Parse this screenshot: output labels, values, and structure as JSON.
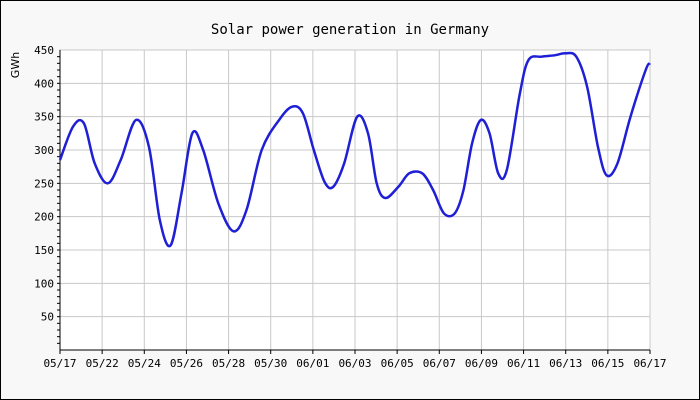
{
  "chart_data": {
    "type": "line",
    "title": "Solar power generation in Germany",
    "ylabel": "GWh",
    "xlabel": "",
    "ylim": [
      0,
      450
    ],
    "yticks": [
      50,
      100,
      150,
      200,
      250,
      300,
      350,
      400,
      450
    ],
    "xticks": [
      "05/17",
      "05/22",
      "05/24",
      "05/26",
      "05/28",
      "05/30",
      "06/01",
      "06/03",
      "06/05",
      "06/07",
      "06/09",
      "06/11",
      "06/13",
      "06/15",
      "06/17"
    ],
    "grid": true,
    "colors": {
      "line": "#1f1fd6",
      "grid": "#c8c8c8",
      "plot_bg": "#ffffff"
    },
    "series": [
      {
        "name": "",
        "values": [
          [
            0,
            285
          ],
          [
            0.6,
            335
          ],
          [
            1.1,
            340
          ],
          [
            1.6,
            280
          ],
          [
            2.2,
            250
          ],
          [
            2.8,
            285
          ],
          [
            3.5,
            345
          ],
          [
            4.1,
            305
          ],
          [
            4.6,
            195
          ],
          [
            5.1,
            157
          ],
          [
            5.6,
            235
          ],
          [
            6.1,
            325
          ],
          [
            6.6,
            300
          ],
          [
            7.3,
            220
          ],
          [
            8.0,
            178
          ],
          [
            8.6,
            210
          ],
          [
            9.3,
            300
          ],
          [
            10.1,
            345
          ],
          [
            10.7,
            365
          ],
          [
            11.2,
            355
          ],
          [
            11.7,
            300
          ],
          [
            12.2,
            252
          ],
          [
            12.6,
            245
          ],
          [
            13.1,
            280
          ],
          [
            13.7,
            350
          ],
          [
            14.2,
            325
          ],
          [
            14.6,
            250
          ],
          [
            15.0,
            228
          ],
          [
            15.6,
            245
          ],
          [
            16.1,
            265
          ],
          [
            16.7,
            265
          ],
          [
            17.2,
            240
          ],
          [
            17.7,
            205
          ],
          [
            18.2,
            205
          ],
          [
            18.6,
            240
          ],
          [
            19.0,
            310
          ],
          [
            19.4,
            345
          ],
          [
            19.8,
            325
          ],
          [
            20.2,
            265
          ],
          [
            20.6,
            270
          ],
          [
            21.2,
            385
          ],
          [
            21.6,
            435
          ],
          [
            22.2,
            440
          ],
          [
            22.8,
            442
          ],
          [
            23.3,
            445
          ],
          [
            23.8,
            440
          ],
          [
            24.3,
            395
          ],
          [
            24.8,
            305
          ],
          [
            25.2,
            262
          ],
          [
            25.7,
            280
          ],
          [
            26.3,
            350
          ],
          [
            27.0,
            420
          ],
          [
            27.2,
            430
          ]
        ]
      }
    ]
  }
}
